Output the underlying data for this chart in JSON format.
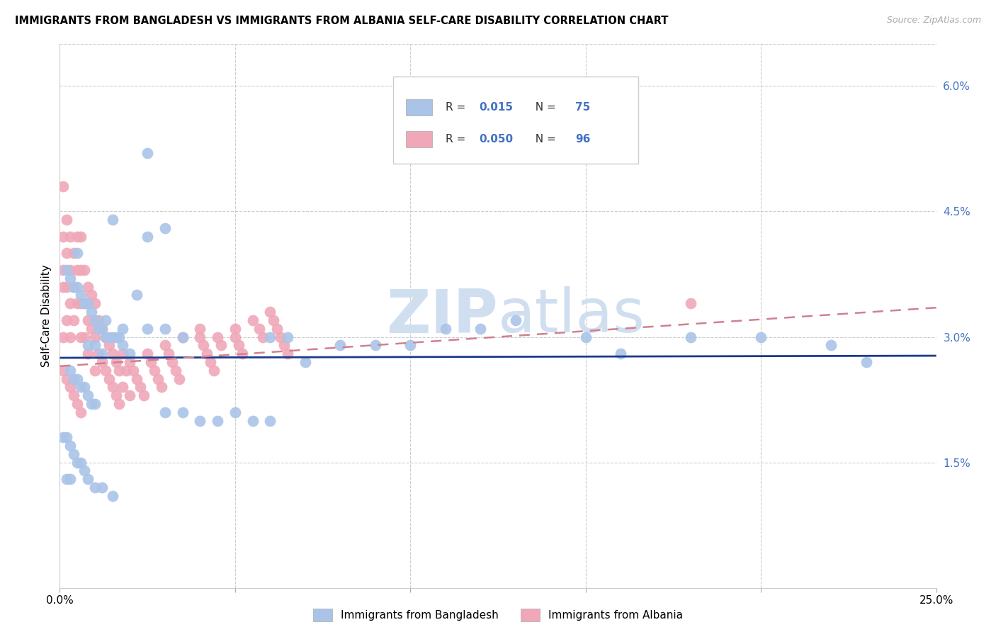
{
  "title": "IMMIGRANTS FROM BANGLADESH VS IMMIGRANTS FROM ALBANIA SELF-CARE DISABILITY CORRELATION CHART",
  "source": "Source: ZipAtlas.com",
  "ylabel": "Self-Care Disability",
  "xlim": [
    0.0,
    0.25
  ],
  "ylim": [
    0.0,
    0.065
  ],
  "color_bangladesh": "#aac4e8",
  "color_albania": "#f0a8b8",
  "trend_bangladesh_color": "#1a3a8a",
  "trend_albania_color": "#d08090",
  "watermark_color": "#d0dff0",
  "legend_text_color": "#4472c4",
  "bangladesh_x": [
    0.025,
    0.015,
    0.03,
    0.025,
    0.005,
    0.002,
    0.003,
    0.004,
    0.005,
    0.006,
    0.007,
    0.008,
    0.009,
    0.01,
    0.011,
    0.012,
    0.013,
    0.014,
    0.015,
    0.016,
    0.017,
    0.018,
    0.008,
    0.01,
    0.012,
    0.02,
    0.022,
    0.013,
    0.018,
    0.025,
    0.03,
    0.035,
    0.06,
    0.065,
    0.08,
    0.09,
    0.1,
    0.12,
    0.15,
    0.16,
    0.18,
    0.2,
    0.22,
    0.23,
    0.003,
    0.004,
    0.005,
    0.006,
    0.007,
    0.008,
    0.009,
    0.01,
    0.05,
    0.055,
    0.06,
    0.07,
    0.03,
    0.035,
    0.04,
    0.045,
    0.001,
    0.002,
    0.003,
    0.004,
    0.005,
    0.006,
    0.007,
    0.002,
    0.003,
    0.008,
    0.01,
    0.012,
    0.015,
    0.11,
    0.13
  ],
  "bangladesh_y": [
    0.052,
    0.044,
    0.043,
    0.042,
    0.04,
    0.038,
    0.037,
    0.036,
    0.036,
    0.035,
    0.034,
    0.034,
    0.033,
    0.032,
    0.031,
    0.031,
    0.03,
    0.03,
    0.03,
    0.03,
    0.03,
    0.029,
    0.029,
    0.029,
    0.028,
    0.028,
    0.035,
    0.032,
    0.031,
    0.031,
    0.031,
    0.03,
    0.03,
    0.03,
    0.029,
    0.029,
    0.029,
    0.031,
    0.03,
    0.028,
    0.03,
    0.03,
    0.029,
    0.027,
    0.026,
    0.025,
    0.025,
    0.024,
    0.024,
    0.023,
    0.022,
    0.022,
    0.021,
    0.02,
    0.02,
    0.027,
    0.021,
    0.021,
    0.02,
    0.02,
    0.018,
    0.018,
    0.017,
    0.016,
    0.015,
    0.015,
    0.014,
    0.013,
    0.013,
    0.013,
    0.012,
    0.012,
    0.011,
    0.031,
    0.032
  ],
  "albania_x": [
    0.001,
    0.001,
    0.001,
    0.001,
    0.001,
    0.002,
    0.002,
    0.002,
    0.002,
    0.003,
    0.003,
    0.003,
    0.003,
    0.004,
    0.004,
    0.004,
    0.005,
    0.005,
    0.005,
    0.006,
    0.006,
    0.006,
    0.006,
    0.007,
    0.007,
    0.007,
    0.008,
    0.008,
    0.008,
    0.009,
    0.009,
    0.01,
    0.01,
    0.01,
    0.011,
    0.011,
    0.012,
    0.012,
    0.013,
    0.013,
    0.014,
    0.014,
    0.015,
    0.015,
    0.016,
    0.016,
    0.017,
    0.017,
    0.018,
    0.018,
    0.019,
    0.02,
    0.02,
    0.021,
    0.022,
    0.023,
    0.024,
    0.025,
    0.026,
    0.027,
    0.028,
    0.029,
    0.03,
    0.031,
    0.032,
    0.033,
    0.034,
    0.035,
    0.04,
    0.04,
    0.041,
    0.042,
    0.043,
    0.044,
    0.045,
    0.046,
    0.05,
    0.05,
    0.051,
    0.052,
    0.055,
    0.057,
    0.058,
    0.06,
    0.061,
    0.062,
    0.063,
    0.064,
    0.065,
    0.18,
    0.001,
    0.002,
    0.003,
    0.004,
    0.005,
    0.006
  ],
  "albania_y": [
    0.048,
    0.042,
    0.038,
    0.036,
    0.03,
    0.044,
    0.04,
    0.036,
    0.032,
    0.042,
    0.038,
    0.034,
    0.03,
    0.04,
    0.036,
    0.032,
    0.042,
    0.038,
    0.034,
    0.042,
    0.038,
    0.034,
    0.03,
    0.038,
    0.034,
    0.03,
    0.036,
    0.032,
    0.028,
    0.035,
    0.031,
    0.034,
    0.03,
    0.026,
    0.032,
    0.028,
    0.031,
    0.027,
    0.03,
    0.026,
    0.029,
    0.025,
    0.028,
    0.024,
    0.027,
    0.023,
    0.026,
    0.022,
    0.028,
    0.024,
    0.026,
    0.027,
    0.023,
    0.026,
    0.025,
    0.024,
    0.023,
    0.028,
    0.027,
    0.026,
    0.025,
    0.024,
    0.029,
    0.028,
    0.027,
    0.026,
    0.025,
    0.03,
    0.031,
    0.03,
    0.029,
    0.028,
    0.027,
    0.026,
    0.03,
    0.029,
    0.031,
    0.03,
    0.029,
    0.028,
    0.032,
    0.031,
    0.03,
    0.033,
    0.032,
    0.031,
    0.03,
    0.029,
    0.028,
    0.034,
    0.026,
    0.025,
    0.024,
    0.023,
    0.022,
    0.021
  ]
}
